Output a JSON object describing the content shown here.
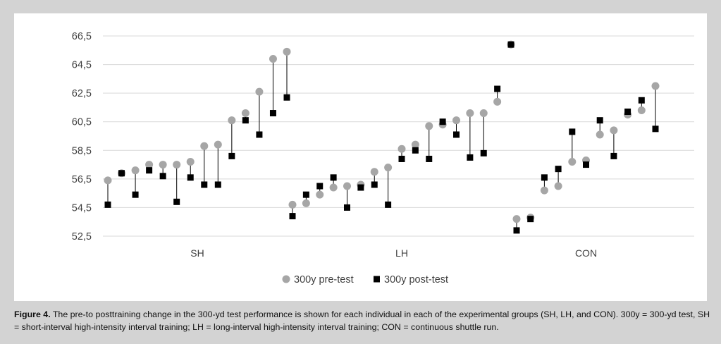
{
  "chart_data": {
    "type": "scatter",
    "ylim": [
      52.5,
      66.5
    ],
    "yticks": [
      "66,5",
      "64,5",
      "62,5",
      "60,5",
      "58,5",
      "56,5",
      "54,5",
      "52,5"
    ],
    "ytick_values": [
      66.5,
      64.5,
      62.5,
      60.5,
      58.5,
      56.5,
      54.5,
      52.5
    ],
    "grid": true,
    "legend_position": "bottom",
    "categories": [
      "SH",
      "LH",
      "CON"
    ],
    "groups": [
      {
        "name": "SH",
        "pre": [
          56.4,
          56.9,
          57.1,
          57.5,
          57.5,
          57.5,
          57.7,
          58.8,
          58.9,
          60.6,
          61.1,
          62.6,
          64.9,
          65.4
        ],
        "post": [
          54.7,
          56.9,
          55.4,
          57.1,
          56.7,
          54.9,
          56.6,
          56.1,
          56.1,
          58.1,
          60.6,
          59.6,
          61.1,
          62.2
        ]
      },
      {
        "name": "LH",
        "pre": [
          54.7,
          54.8,
          55.4,
          55.9,
          56.0,
          56.1,
          57.0,
          57.3,
          58.6,
          58.9,
          60.2,
          60.3,
          60.6,
          61.1,
          61.1,
          61.9,
          65.9
        ],
        "post": [
          53.9,
          55.4,
          56.0,
          56.6,
          54.5,
          55.9,
          56.1,
          54.7,
          57.9,
          58.5,
          57.9,
          60.5,
          59.6,
          58.0,
          58.3,
          62.8,
          65.9
        ]
      },
      {
        "name": "CON",
        "pre": [
          53.7,
          53.8,
          55.7,
          56.0,
          57.7,
          57.8,
          59.6,
          59.9,
          61.0,
          61.3,
          63.0
        ],
        "post": [
          52.9,
          53.7,
          56.6,
          57.2,
          59.8,
          57.5,
          60.6,
          58.1,
          61.2,
          62.0,
          60.0
        ]
      }
    ],
    "series": [
      {
        "name": "300y pre-test",
        "marker": "circle",
        "color": "#a6a6a6"
      },
      {
        "name": "300y post-test",
        "marker": "square",
        "color": "#000000"
      }
    ]
  },
  "caption": {
    "label": "Figure 4.",
    "text": "The pre-to posttraining change in the 300-yd test performance is shown for each individual in each of the experimental groups (SH, LH, and CON). 300y = 300-yd test, SH = short-interval high-intensity interval training; LH = long-interval high-intensity interval training; CON = continuous shuttle run."
  },
  "colors": {
    "background": "#d3d3d3",
    "panel": "#ffffff",
    "gridline": "#d9d9d9",
    "connector": "#000000"
  }
}
